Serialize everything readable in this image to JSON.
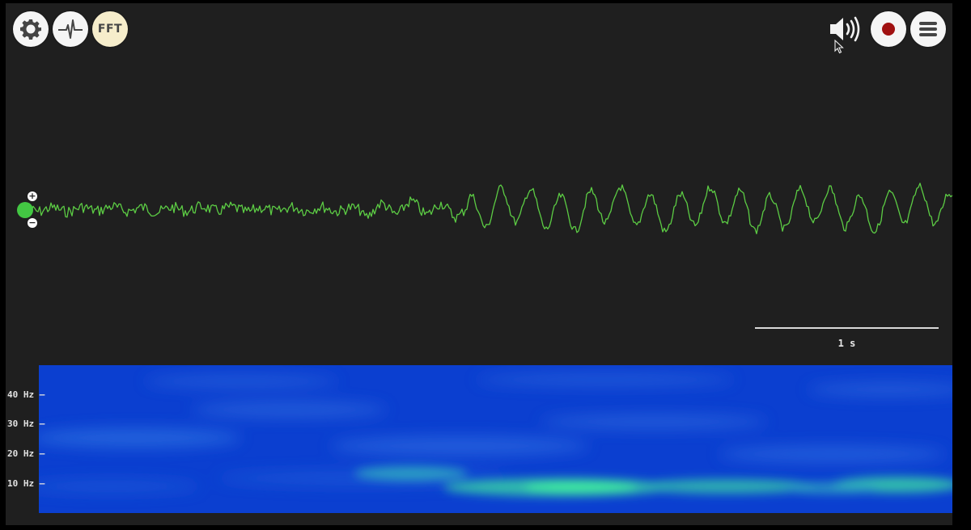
{
  "toolbar": {
    "settings_icon": "gear-icon",
    "signal_icon": "waveform-icon",
    "fft_label": "FFT",
    "volume_icon": "speaker-volume-icon",
    "record_icon": "record-icon",
    "menu_icon": "hamburger-menu-icon",
    "record_color": "#a01010"
  },
  "trace": {
    "color": "#5ccc44",
    "zoom_in_label": "+",
    "zoom_out_label": "−",
    "handle_color": "#43c743"
  },
  "scale": {
    "label": "1 s"
  },
  "spectrogram": {
    "y_labels": [
      "40 Hz –",
      "30 Hz –",
      "20 Hz –",
      "10 Hz –"
    ],
    "low_color": "#0b3fd0",
    "high_color": "#3ee8a0"
  }
}
